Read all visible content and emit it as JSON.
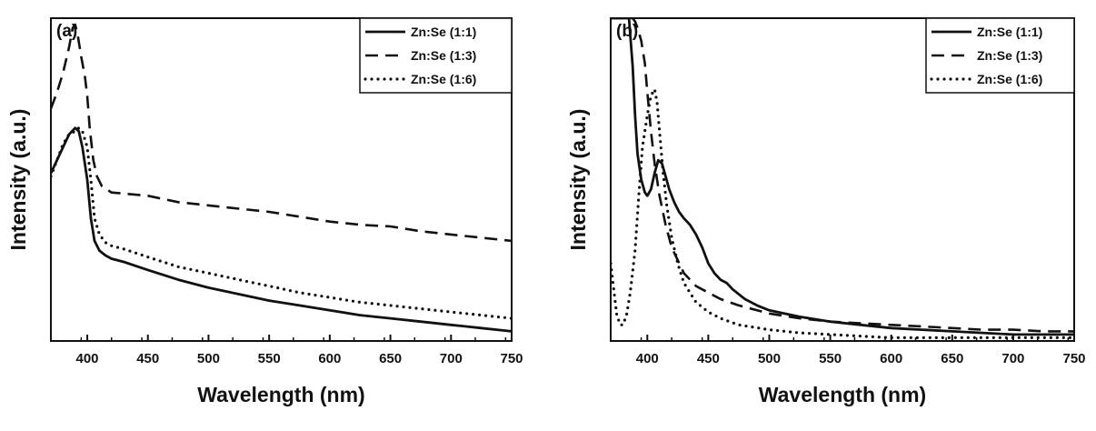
{
  "chart_data": [
    {
      "type": "line",
      "panel_label": "(a)",
      "xlabel": "Wavelength (nm)",
      "ylabel": "Intensity (a.u.)",
      "xlim": [
        370,
        750
      ],
      "ylim": [
        0,
        100
      ],
      "xticks": [
        400,
        450,
        500,
        550,
        600,
        650,
        700,
        750
      ],
      "legend_position": "top-right",
      "series": [
        {
          "name": "Zn:Se (1:1)",
          "style": "solid",
          "x": [
            370,
            375,
            380,
            385,
            390,
            393,
            396,
            400,
            403,
            406,
            410,
            415,
            420,
            430,
            450,
            475,
            500,
            525,
            550,
            575,
            600,
            625,
            650,
            675,
            700,
            725,
            750
          ],
          "y": [
            52,
            56,
            60,
            64,
            66,
            65,
            60,
            50,
            38,
            31,
            28,
            26.5,
            25.5,
            24.5,
            22,
            19,
            16.5,
            14.5,
            12.5,
            11,
            9.5,
            8,
            7,
            6,
            5,
            4,
            3
          ]
        },
        {
          "name": "Zn:Se (1:3)",
          "style": "dashed",
          "x": [
            370,
            375,
            380,
            385,
            388,
            390,
            392,
            395,
            398,
            400,
            402,
            405,
            408,
            412,
            420,
            450,
            475,
            500,
            525,
            550,
            575,
            600,
            625,
            650,
            675,
            700,
            725,
            750
          ],
          "y": [
            72,
            77,
            83,
            91,
            97,
            98,
            95,
            88,
            82,
            76,
            66,
            56,
            51,
            48,
            46,
            45,
            43,
            42,
            41,
            40,
            38.5,
            37,
            36,
            35.5,
            34,
            33,
            32,
            31
          ]
        },
        {
          "name": "Zn:Se (1:6)",
          "style": "dotted",
          "x": [
            370,
            375,
            380,
            385,
            390,
            393,
            396,
            400,
            403,
            406,
            410,
            415,
            420,
            430,
            450,
            475,
            500,
            525,
            550,
            575,
            600,
            625,
            650,
            675,
            700,
            725,
            750
          ],
          "y": [
            51,
            56,
            61,
            64,
            65,
            66,
            65,
            60,
            50,
            38,
            33,
            30.5,
            29.5,
            28.5,
            26,
            23,
            21,
            19,
            17,
            15,
            13.5,
            12,
            11,
            10,
            9,
            8,
            7
          ]
        }
      ]
    },
    {
      "type": "line",
      "panel_label": "(b)",
      "xlabel": "Wavelength (nm)",
      "ylabel": "Intensity (a.u.)",
      "xlim": [
        370,
        750
      ],
      "ylim": [
        0,
        100
      ],
      "xticks": [
        400,
        450,
        500,
        550,
        600,
        650,
        700,
        750
      ],
      "legend_position": "top-right",
      "series": [
        {
          "name": "Zn:Se (1:1)",
          "style": "solid",
          "x": [
            370,
            385,
            388,
            390,
            392,
            395,
            398,
            400,
            403,
            406,
            409,
            412,
            415,
            418,
            422,
            426,
            430,
            435,
            440,
            445,
            450,
            455,
            460,
            465,
            470,
            480,
            490,
            500,
            525,
            550,
            575,
            600,
            625,
            650,
            675,
            700,
            725,
            750
          ],
          "y": [
            100,
            100,
            85,
            70,
            58,
            50,
            46,
            45,
            47,
            52,
            56,
            55,
            51,
            47,
            43,
            40,
            38,
            36,
            33,
            29,
            24,
            21,
            19,
            18,
            16,
            13,
            11,
            9.5,
            7.5,
            6,
            5,
            4,
            3.5,
            3,
            2.5,
            2,
            2,
            2
          ]
        },
        {
          "name": "Zn:Se (1:3)",
          "style": "dashed",
          "x": [
            370,
            385,
            388,
            390,
            392,
            395,
            398,
            400,
            403,
            406,
            410,
            415,
            420,
            430,
            440,
            450,
            460,
            475,
            500,
            525,
            550,
            575,
            600,
            625,
            650,
            675,
            700,
            725,
            750
          ],
          "y": [
            100,
            100,
            100,
            99,
            97,
            93,
            86,
            77,
            65,
            55,
            45,
            36,
            29,
            21,
            17,
            15,
            13,
            11,
            8.5,
            7,
            6,
            5.5,
            5,
            4.5,
            4,
            3.5,
            3.5,
            3,
            3
          ]
        },
        {
          "name": "Zn:Se (1:6)",
          "style": "dotted",
          "x": [
            370,
            375,
            378,
            380,
            383,
            386,
            390,
            393,
            396,
            400,
            403,
            406,
            408,
            410,
            413,
            416,
            420,
            425,
            430,
            440,
            450,
            460,
            475,
            500,
            525,
            550,
            575,
            600,
            650,
            700,
            750
          ],
          "y": [
            24,
            8,
            5,
            5,
            8,
            15,
            28,
            45,
            60,
            70,
            76,
            78,
            74,
            65,
            52,
            42,
            32,
            24,
            18,
            12,
            9,
            7,
            5,
            3.5,
            2.5,
            2,
            1.5,
            1,
            1,
            1,
            1
          ]
        }
      ]
    }
  ]
}
